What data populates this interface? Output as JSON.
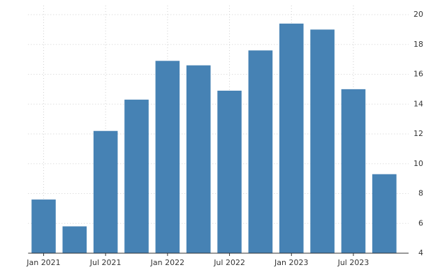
{
  "chart_data": {
    "type": "bar",
    "categories": [
      "Jan 2021",
      null,
      "Jul 2021",
      null,
      "Jan 2022",
      null,
      "Jul 2022",
      null,
      "Jan 2023",
      null,
      "Jul 2023",
      null
    ],
    "values": [
      7.6,
      5.8,
      12.2,
      14.3,
      16.9,
      16.6,
      14.9,
      17.6,
      19.4,
      19.0,
      15.0,
      9.3
    ],
    "color": "#4682b4",
    "ylim": [
      4,
      20
    ],
    "yticks": [
      4,
      6,
      8,
      10,
      12,
      14,
      16,
      18,
      20
    ],
    "grid": true,
    "y_axis_side": "right"
  }
}
